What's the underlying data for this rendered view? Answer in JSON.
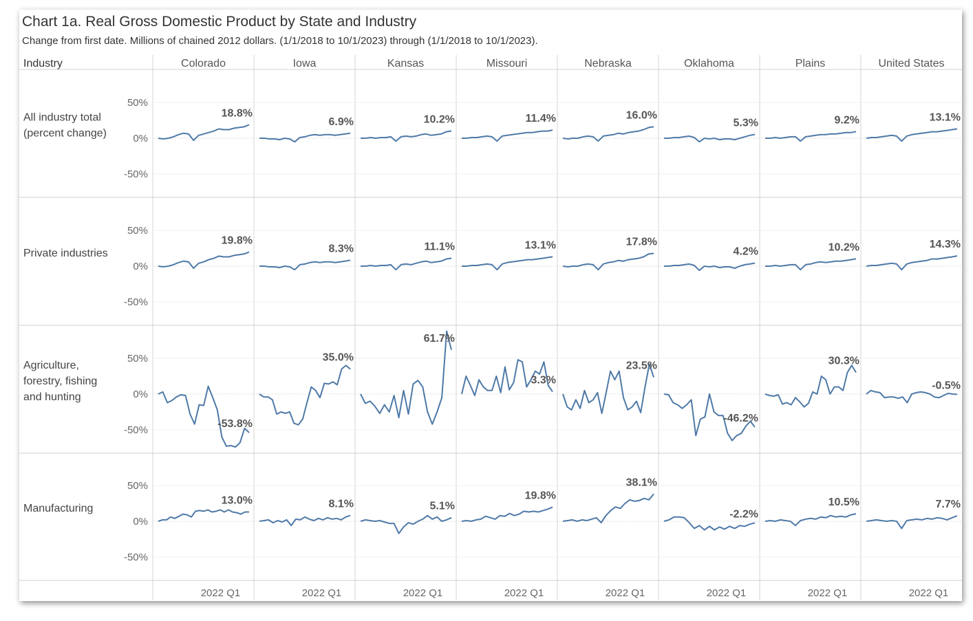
{
  "chart_data": {
    "type": "line",
    "title": "Chart 1a. Real Gross Domestic Product by State and Industry",
    "subtitle": "Change from first date. Millions of chained 2012 dollars. (1/1/2018 to 10/1/2023) through (1/1/2018 to 10/1/2023).",
    "row_header": "Industry",
    "x_tick_label": "2022 Q1",
    "y_ticks": [
      "50%",
      "0%",
      "-50%"
    ],
    "ylim": [
      -75,
      90
    ],
    "line_color": "#4e79a7",
    "columns": [
      "Colorado",
      "Iowa",
      "Kansas",
      "Missouri",
      "Nebraska",
      "Oklahoma",
      "Plains",
      "United States"
    ],
    "rows": [
      {
        "label": [
          "All industry total",
          "(percent change)"
        ],
        "end_labels": [
          "18.8%",
          "6.9%",
          "10.2%",
          "11.4%",
          "16.0%",
          "5.3%",
          "9.2%",
          "13.1%"
        ],
        "series": [
          [
            0,
            -1,
            0,
            2,
            5,
            7,
            6,
            -3,
            4,
            6,
            8,
            10,
            13,
            12,
            12,
            14,
            15,
            16,
            18.8
          ],
          [
            0,
            0,
            -1,
            -1,
            -2,
            0,
            -1,
            -5,
            1,
            2,
            4,
            5,
            4,
            5,
            5,
            4,
            5,
            6,
            6.9
          ],
          [
            0,
            0,
            1,
            0,
            1,
            1,
            2,
            -4,
            2,
            3,
            2,
            3,
            5,
            6,
            4,
            5,
            6,
            9,
            10.2
          ],
          [
            0,
            0,
            1,
            1,
            2,
            3,
            2,
            -4,
            3,
            4,
            5,
            6,
            7,
            8,
            8,
            9,
            10,
            10,
            11.4
          ],
          [
            0,
            -1,
            0,
            0,
            2,
            3,
            2,
            -4,
            3,
            4,
            5,
            7,
            6,
            8,
            9,
            10,
            12,
            15,
            16.0
          ],
          [
            0,
            0,
            1,
            1,
            2,
            3,
            1,
            -5,
            0,
            -1,
            0,
            -2,
            -1,
            -1,
            -2,
            0,
            2,
            4,
            5.3
          ],
          [
            0,
            0,
            1,
            0,
            1,
            2,
            2,
            -4,
            2,
            3,
            4,
            5,
            5,
            6,
            6,
            7,
            8,
            8,
            9.2
          ],
          [
            0,
            1,
            1,
            2,
            3,
            4,
            3,
            -4,
            3,
            5,
            6,
            7,
            8,
            9,
            9,
            10,
            11,
            12,
            13.1
          ]
        ]
      },
      {
        "label": [
          "Private industries"
        ],
        "end_labels": [
          "19.8%",
          "8.3%",
          "11.1%",
          "13.1%",
          "17.8%",
          "4.2%",
          "10.2%",
          "14.3%"
        ],
        "series": [
          [
            0,
            -1,
            0,
            2,
            5,
            7,
            6,
            -3,
            4,
            6,
            9,
            11,
            14,
            13,
            13,
            15,
            16,
            17,
            19.8
          ],
          [
            0,
            0,
            -1,
            -1,
            -2,
            0,
            -1,
            -5,
            2,
            3,
            5,
            6,
            5,
            6,
            6,
            5,
            6,
            7,
            8.3
          ],
          [
            0,
            0,
            1,
            0,
            1,
            1,
            2,
            -5,
            2,
            3,
            2,
            4,
            6,
            7,
            5,
            6,
            7,
            10,
            11.1
          ],
          [
            0,
            0,
            1,
            1,
            2,
            3,
            2,
            -5,
            3,
            5,
            6,
            7,
            8,
            9,
            9,
            10,
            11,
            12,
            13.1
          ],
          [
            0,
            -1,
            0,
            0,
            2,
            3,
            2,
            -5,
            3,
            5,
            6,
            8,
            7,
            9,
            10,
            11,
            13,
            17,
            17.8
          ],
          [
            0,
            0,
            1,
            1,
            2,
            3,
            1,
            -6,
            0,
            -1,
            0,
            -2,
            -1,
            -1,
            -3,
            0,
            2,
            3,
            4.2
          ],
          [
            0,
            0,
            1,
            0,
            1,
            2,
            2,
            -5,
            2,
            3,
            5,
            6,
            5,
            6,
            7,
            7,
            8,
            9,
            10.2
          ],
          [
            0,
            1,
            1,
            2,
            3,
            4,
            3,
            -5,
            3,
            5,
            6,
            7,
            8,
            10,
            10,
            11,
            12,
            13,
            14.3
          ]
        ]
      },
      {
        "label": [
          "Agriculture,",
          "forestry, fishing",
          "and hunting"
        ],
        "end_labels": [
          "-53.8%",
          "35.0%",
          "61.7%",
          "3.3%",
          "23.5%",
          "-46.2%",
          "30.3%",
          "-0.5%"
        ],
        "series": [
          [
            0,
            3,
            -12,
            -9,
            -4,
            -1,
            -2,
            -28,
            -42,
            -15,
            -16,
            11,
            -5,
            -22,
            -60,
            -73,
            -72,
            -74,
            -68,
            -48,
            -53.8
          ],
          [
            0,
            -4,
            -4,
            -8,
            -28,
            -25,
            -27,
            -25,
            -41,
            -43,
            -35,
            -12,
            10,
            5,
            -5,
            15,
            14,
            17,
            13,
            35,
            40,
            35.0
          ],
          [
            0,
            -13,
            -10,
            -17,
            -27,
            -15,
            -25,
            -2,
            -33,
            5,
            -28,
            14,
            19,
            10,
            -25,
            -42,
            -25,
            -5,
            88,
            61.7
          ],
          [
            0,
            25,
            12,
            -2,
            20,
            10,
            5,
            5,
            25,
            2,
            38,
            6,
            16,
            48,
            45,
            10,
            20,
            32,
            28,
            45,
            12,
            3.3
          ],
          [
            0,
            -18,
            -22,
            -8,
            -20,
            5,
            -12,
            -8,
            2,
            -27,
            2,
            32,
            20,
            32,
            -5,
            -22,
            -18,
            -10,
            -26,
            10,
            42,
            23.5
          ],
          [
            0,
            -1,
            -12,
            -15,
            -20,
            -15,
            -8,
            -58,
            -35,
            -32,
            0,
            -25,
            -30,
            -30,
            -55,
            -65,
            -58,
            -55,
            -45,
            -38,
            -46.2
          ],
          [
            0,
            -2,
            -3,
            -1,
            -14,
            -12,
            -15,
            -5,
            -11,
            -18,
            -13,
            3,
            0,
            25,
            20,
            0,
            10,
            10,
            5,
            30,
            40,
            30.3
          ],
          [
            0,
            5,
            3,
            2,
            -5,
            -4,
            -4,
            -6,
            -4,
            -12,
            0,
            2,
            3,
            2,
            0,
            -4,
            -5,
            -2,
            1,
            0,
            -0.5
          ]
        ]
      },
      {
        "label": [
          "Manufacturing"
        ],
        "end_labels": [
          "13.0%",
          "8.1%",
          "5.1%",
          "19.8%",
          "38.1%",
          "-2.2%",
          "10.5%",
          "7.7%"
        ],
        "series": [
          [
            0,
            2,
            2,
            6,
            4,
            7,
            10,
            9,
            6,
            14,
            15,
            14,
            16,
            13,
            14,
            16,
            13,
            16,
            13,
            12,
            10,
            13,
            13.0
          ],
          [
            0,
            1,
            2,
            -2,
            1,
            -1,
            2,
            -6,
            3,
            2,
            6,
            3,
            1,
            4,
            2,
            5,
            3,
            4,
            2,
            6,
            8.1
          ],
          [
            0,
            2,
            1,
            0,
            1,
            -1,
            -3,
            -3,
            -17,
            -8,
            -2,
            -4,
            0,
            3,
            8,
            3,
            6,
            0,
            2,
            5.1
          ],
          [
            0,
            1,
            0,
            2,
            3,
            7,
            5,
            3,
            8,
            7,
            11,
            8,
            10,
            14,
            13,
            14,
            13,
            15,
            17,
            19.8
          ],
          [
            0,
            1,
            2,
            0,
            2,
            1,
            3,
            5,
            -2,
            8,
            15,
            20,
            18,
            25,
            30,
            28,
            29,
            32,
            30,
            38.1
          ],
          [
            0,
            2,
            6,
            6,
            5,
            -2,
            -10,
            -6,
            -12,
            -7,
            -12,
            -8,
            -11,
            -7,
            -10,
            -6,
            -7,
            -4,
            -2.2
          ],
          [
            0,
            1,
            0,
            2,
            1,
            0,
            -6,
            1,
            3,
            4,
            3,
            6,
            5,
            8,
            6,
            7,
            6,
            9,
            10.5
          ],
          [
            0,
            1,
            2,
            1,
            0,
            1,
            0,
            -10,
            1,
            2,
            3,
            2,
            4,
            3,
            5,
            4,
            2,
            5,
            7.7
          ]
        ]
      }
    ]
  }
}
